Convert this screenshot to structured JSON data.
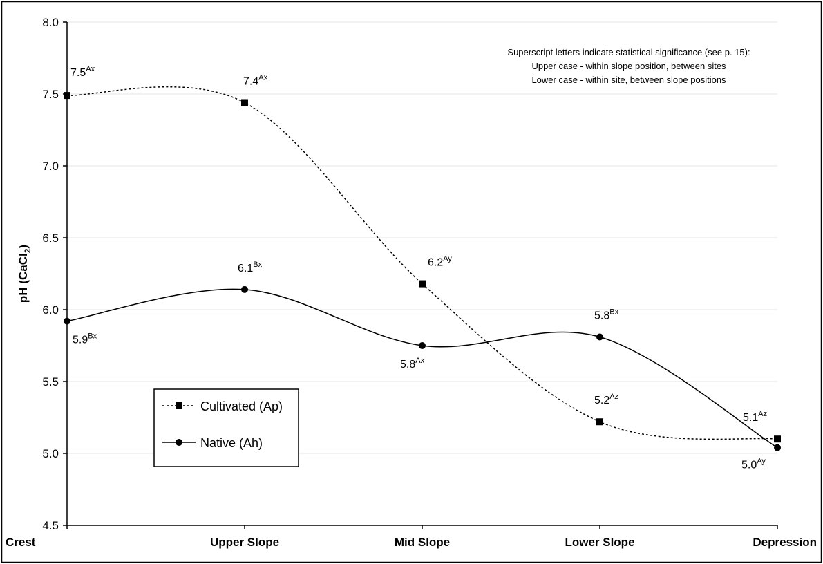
{
  "chart_data": {
    "type": "line",
    "y_label": [
      "pH (CaCl",
      "2",
      ")"
    ],
    "annotation": [
      "Superscript letters indicate statistical significance (see p. 15):",
      "Upper case - within slope position, between sites",
      "Lower case - within site, between slope positions"
    ],
    "categories": [
      "Crest",
      "Upper Slope",
      "Mid Slope",
      "Lower Slope",
      "Depression"
    ],
    "ylim": [
      4.5,
      8.0
    ],
    "yticks": [
      4.5,
      {
        "value": 5.0,
        "label": "5.0"
      },
      5.5,
      {
        "value": 6.0,
        "label": "6.0"
      },
      6.5,
      {
        "value": 7.0,
        "label": "7.0"
      },
      7.5,
      {
        "value": 8.0,
        "label": "8.0"
      }
    ],
    "grid": true,
    "smooth": true,
    "series": [
      {
        "name": "Cultivated (Ap)",
        "color": "#000000",
        "dash": "dotted",
        "marker": "square",
        "values": [
          7.49,
          7.44,
          6.18,
          5.22,
          5.1
        ],
        "value_labels": [
          "7.5",
          "7.4",
          "6.2",
          "5.2",
          "5.1"
        ],
        "significance": [
          "Ax",
          "Ax",
          "Ay",
          "Az",
          "Az"
        ]
      },
      {
        "name": "Native (Ah)",
        "color": "#000000",
        "dash": "solid",
        "marker": "circle",
        "values": [
          5.92,
          6.14,
          5.75,
          5.81,
          5.04
        ],
        "value_labels": [
          "5.9",
          "6.1",
          "5.8",
          "5.8",
          "5.0"
        ],
        "significance": [
          "Bx",
          "Bx",
          "Ax",
          "Bx",
          "Ay"
        ]
      }
    ]
  }
}
